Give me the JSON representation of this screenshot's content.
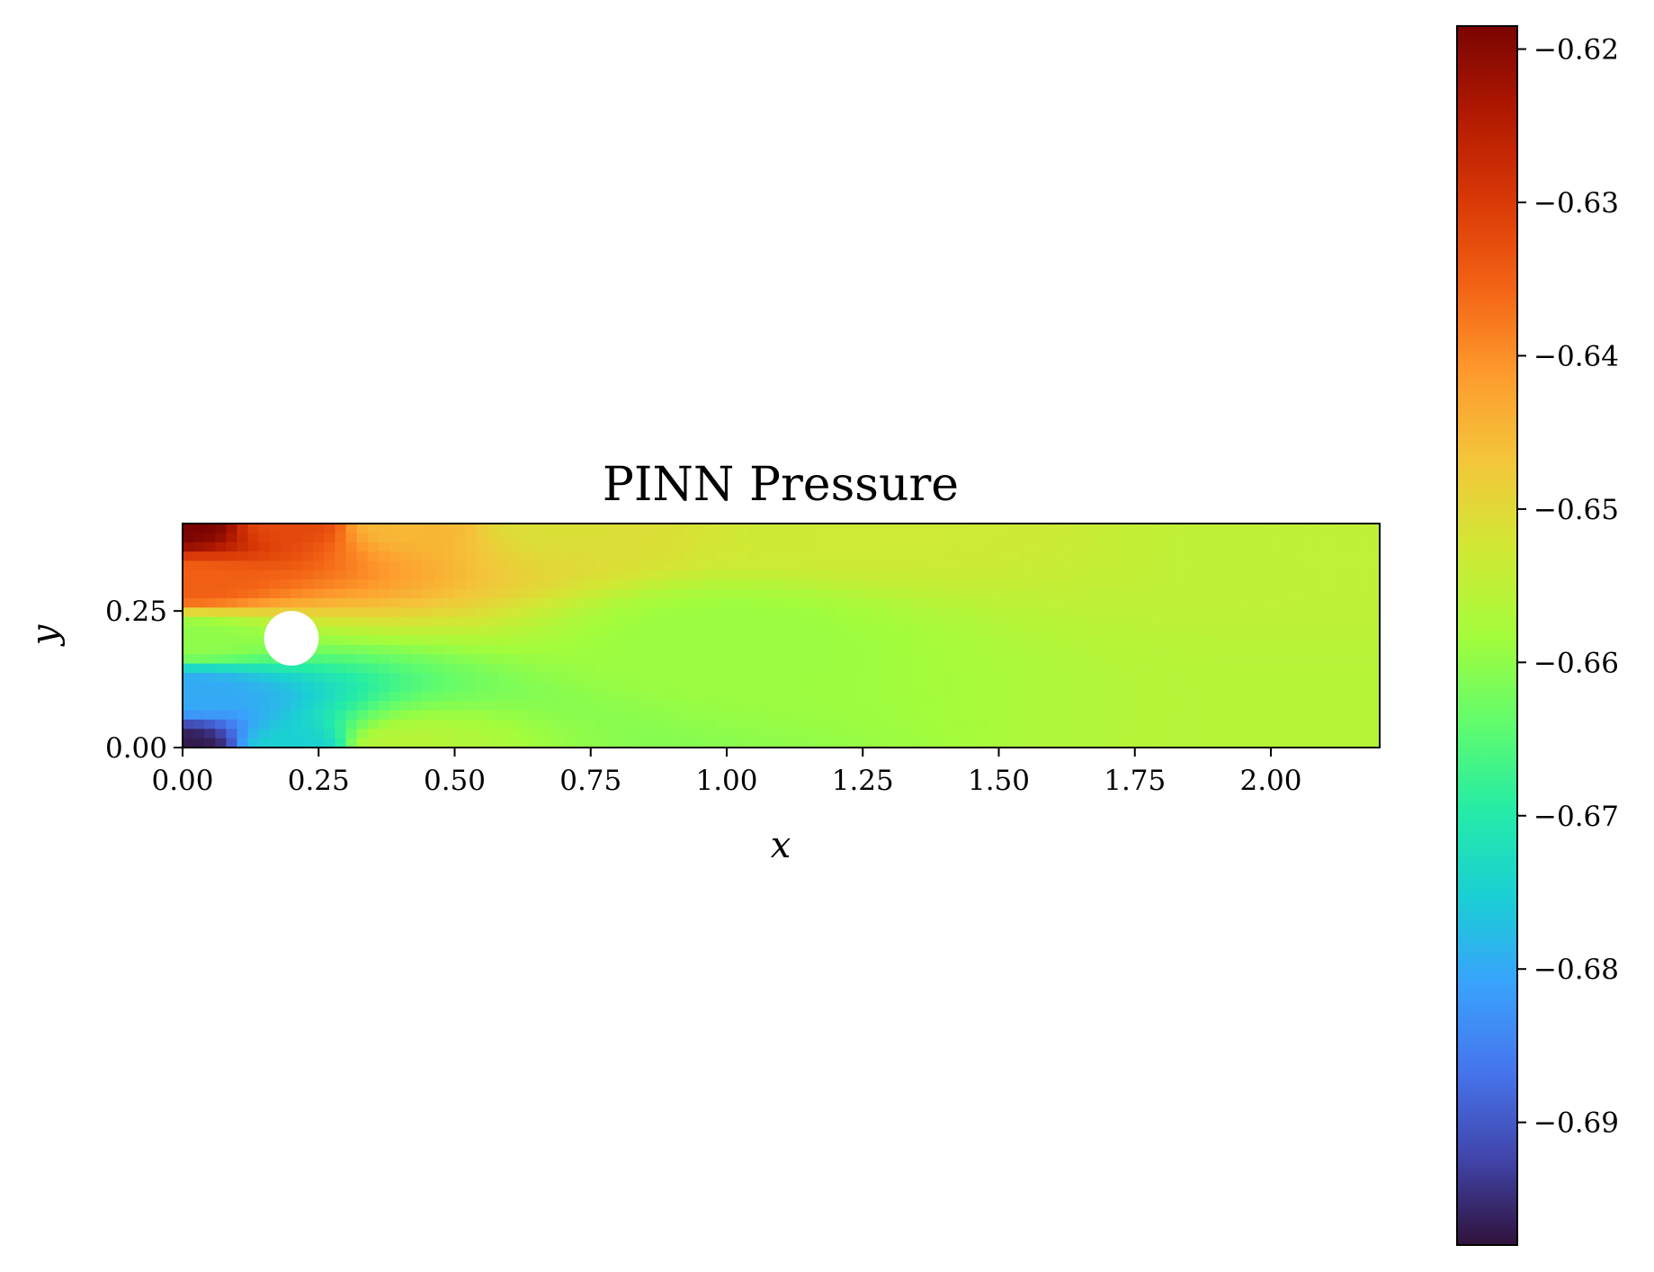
{
  "chart_data": {
    "type": "heatmap",
    "title": "PINN Pressure",
    "xlabel": "x",
    "ylabel": "y",
    "xlim": [
      0.0,
      2.2
    ],
    "ylim": [
      0.0,
      0.41
    ],
    "x_ticks": [
      0.0,
      0.25,
      0.5,
      0.75,
      1.0,
      1.25,
      1.5,
      1.75,
      2.0
    ],
    "x_tick_labels": [
      "0.00",
      "0.25",
      "0.50",
      "0.75",
      "1.00",
      "1.25",
      "1.50",
      "1.75",
      "2.00"
    ],
    "y_ticks": [
      0.0,
      0.25
    ],
    "y_tick_labels": [
      "0.00",
      "0.25"
    ],
    "obstacle": {
      "shape": "circle",
      "cx": 0.2,
      "cy": 0.2,
      "r": 0.05,
      "color": "#ffffff"
    },
    "field_samples": [
      {
        "x": 0.0,
        "y": 0.41,
        "value": -0.6185
      },
      {
        "x": 0.2,
        "y": 0.41,
        "value": -0.632
      },
      {
        "x": 0.4,
        "y": 0.41,
        "value": -0.645
      },
      {
        "x": 0.7,
        "y": 0.41,
        "value": -0.651
      },
      {
        "x": 1.2,
        "y": 0.41,
        "value": -0.653
      },
      {
        "x": 2.2,
        "y": 0.41,
        "value": -0.655
      },
      {
        "x": 0.0,
        "y": 0.3,
        "value": -0.635
      },
      {
        "x": 0.0,
        "y": 0.2,
        "value": -0.66
      },
      {
        "x": 0.0,
        "y": 0.1,
        "value": -0.68
      },
      {
        "x": 0.0,
        "y": 0.0,
        "value": -0.697
      },
      {
        "x": 0.2,
        "y": 0.0,
        "value": -0.675
      },
      {
        "x": 0.4,
        "y": 0.0,
        "value": -0.656
      },
      {
        "x": 1.0,
        "y": 0.2,
        "value": -0.659
      },
      {
        "x": 2.2,
        "y": 0.0,
        "value": -0.656
      }
    ],
    "colorbar": {
      "vmin": -0.698,
      "vmax": -0.6185,
      "ticks": [
        -0.62,
        -0.63,
        -0.64,
        -0.65,
        -0.66,
        -0.67,
        -0.68,
        -0.69
      ],
      "tick_labels": [
        "−0.62",
        "−0.63",
        "−0.64",
        "−0.65",
        "−0.66",
        "−0.67",
        "−0.68",
        "−0.69"
      ],
      "colormap": "turbo",
      "placement": "right"
    },
    "grid": false
  },
  "colormap_stops": [
    "#30123b",
    "#4145ab",
    "#4675ed",
    "#39a2fc",
    "#1bcfd4",
    "#24eca6",
    "#61fc6c",
    "#a4fc3b",
    "#d1e834",
    "#f3c63a",
    "#fe9b2d",
    "#f36315",
    "#d93806",
    "#b11901",
    "#7a0402"
  ]
}
